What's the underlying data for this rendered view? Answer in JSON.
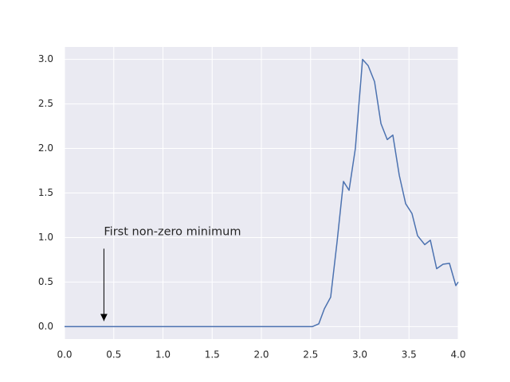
{
  "chart_data": {
    "type": "line",
    "x": [
      0,
      2.52,
      2.583,
      2.64,
      2.704,
      2.769,
      2.834,
      2.891,
      2.955,
      3.028,
      3.085,
      3.15,
      3.215,
      3.279,
      3.336,
      3.401,
      3.466,
      3.53,
      3.587,
      3.66,
      3.717,
      3.781,
      3.846,
      3.911,
      3.976,
      4.0
    ],
    "series": [
      {
        "color": "#4c72b0",
        "values": [
          0,
          0,
          0.03,
          0.2,
          0.33,
          0.95,
          1.63,
          1.53,
          2.0,
          3.0,
          2.93,
          2.75,
          2.28,
          2.1,
          2.15,
          1.7,
          1.38,
          1.27,
          1.02,
          0.92,
          0.97,
          0.65,
          0.7,
          0.71,
          0.46,
          0.5
        ]
      }
    ],
    "xlim": [
      0,
      4.0
    ],
    "ylim": [
      -0.14,
      3.14
    ],
    "xticks": [
      {
        "value": 0,
        "label": "0.0"
      },
      {
        "value": 0.5,
        "label": "0.5"
      },
      {
        "value": 1,
        "label": "1.0"
      },
      {
        "value": 1.5,
        "label": "1.5"
      },
      {
        "value": 2,
        "label": "2.0"
      },
      {
        "value": 2.5,
        "label": "2.5"
      },
      {
        "value": 3,
        "label": "3.0"
      },
      {
        "value": 3.5,
        "label": "3.5"
      },
      {
        "value": 4,
        "label": "4.0"
      }
    ],
    "yticks": [
      {
        "value": 0,
        "label": "0.0"
      },
      {
        "value": 0.5,
        "label": "0.5"
      },
      {
        "value": 1,
        "label": "1.0"
      },
      {
        "value": 1.5,
        "label": "1.5"
      },
      {
        "value": 2,
        "label": "2.0"
      },
      {
        "value": 2.5,
        "label": "2.5"
      },
      {
        "value": 3,
        "label": "3.0"
      }
    ],
    "grid": true,
    "annotations": [
      {
        "text": "First non-zero minimum",
        "xy": [
          0.4,
          0
        ],
        "xytext": [
          0.4,
          1.0
        ]
      }
    ]
  }
}
